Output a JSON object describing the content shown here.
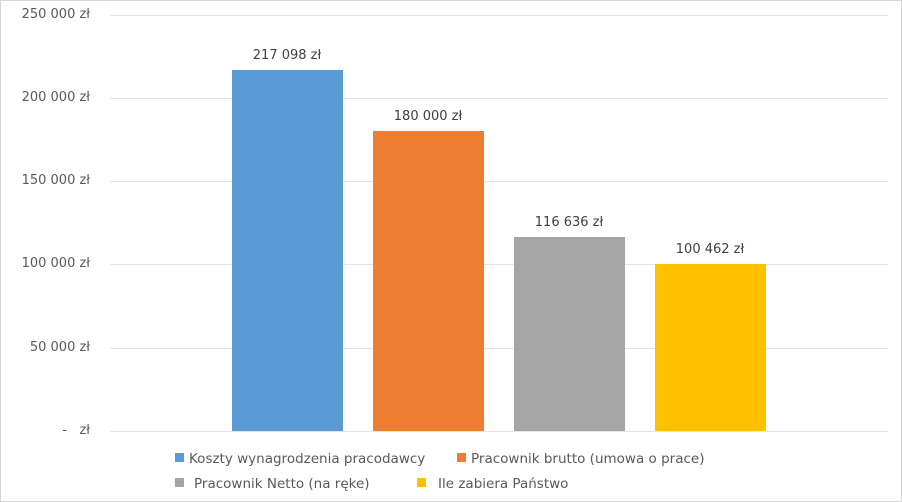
{
  "chart_data": {
    "type": "bar",
    "title": "",
    "xlabel": "",
    "ylabel": "",
    "ylim": [
      0,
      250000
    ],
    "grid": true,
    "legend_position": "bottom",
    "categories": [
      "Koszty wynagrodzenia pracodawcy",
      "Pracownik brutto (umowa o prace)",
      "Pracownik Netto (na ręke)",
      "Ile zabiera Państwo"
    ],
    "values": [
      217098,
      180000,
      116636,
      100462
    ],
    "data_labels": [
      "217 098 zł",
      "180 000 zł",
      "116 636 zł",
      "100 462 zł"
    ],
    "colors": [
      "#5B9BD5",
      "#ED7D31",
      "#A5A5A5",
      "#FFC000"
    ],
    "y_ticks": [
      {
        "value": 250000,
        "label": "250 000 zł"
      },
      {
        "value": 200000,
        "label": "200 000 zł"
      },
      {
        "value": 150000,
        "label": "150 000 zł"
      },
      {
        "value": 100000,
        "label": "100 000 zł"
      },
      {
        "value": 50000,
        "label": "50 000 zł"
      },
      {
        "value": 0,
        "label": "-   zł"
      }
    ]
  },
  "legend": [
    {
      "label": "Koszty wynagrodzenia pracodawcy",
      "color": "#5B9BD5"
    },
    {
      "label": "Pracownik brutto (umowa o prace)",
      "color": "#ED7D31"
    },
    {
      "label": "Pracownik Netto (na ręke)",
      "color": "#A5A5A5"
    },
    {
      "label": "Ile zabiera Państwo",
      "color": "#FFC000"
    }
  ]
}
